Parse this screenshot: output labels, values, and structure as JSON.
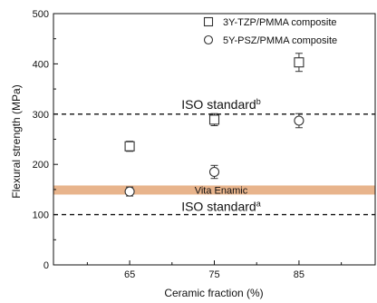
{
  "chart_data": {
    "type": "scatter",
    "title": "",
    "xlabel": "Ceramic fraction (%)",
    "ylabel": "Flexural strength (MPa)",
    "xlim": [
      56,
      94
    ],
    "ylim": [
      0,
      500
    ],
    "x_ticks": [
      65,
      75,
      85
    ],
    "x_tick_labels": [
      "65",
      "75",
      "85"
    ],
    "y_ticks": [
      0,
      100,
      200,
      300,
      400,
      500
    ],
    "y_tick_labels": [
      "0",
      "100",
      "200",
      "300",
      "400",
      "500"
    ],
    "grid": false,
    "legend_position": "top-right",
    "series": [
      {
        "name": "3Y-TZP/PMMA composite",
        "marker": "square",
        "x": [
          65,
          75,
          85
        ],
        "y": [
          236,
          289,
          403
        ],
        "error": [
          10,
          12,
          18
        ]
      },
      {
        "name": "5Y-PSZ/PMMA composite",
        "marker": "circle",
        "x": [
          65,
          75,
          85
        ],
        "y": [
          146,
          185,
          287
        ],
        "error": [
          9,
          13,
          14
        ]
      }
    ],
    "reference_lines": [
      {
        "label": "ISO standard",
        "sup": "b",
        "y": 300,
        "style": "dashed"
      },
      {
        "label": "ISO standard",
        "sup": "a",
        "y": 100,
        "style": "dashed"
      }
    ],
    "band": {
      "label": "Vita Enamic",
      "y_min": 140,
      "y_max": 158,
      "color": "#e8b48c"
    }
  }
}
